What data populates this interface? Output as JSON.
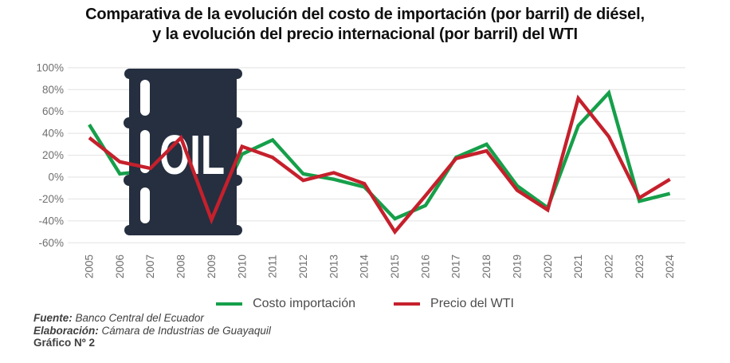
{
  "title": {
    "line1": "Comparativa de la evolución del costo de importación (por barril) de diésel,",
    "line2": "y la evolución del precio internacional (por barril) del WTI"
  },
  "chart_data": {
    "type": "line",
    "x": [
      2005,
      2006,
      2007,
      2008,
      2009,
      2010,
      2011,
      2012,
      2013,
      2014,
      2015,
      2016,
      2017,
      2018,
      2019,
      2020,
      2021,
      2022,
      2023,
      2024
    ],
    "series": [
      {
        "name": "Costo importación",
        "color": "#169f4a",
        "values": [
          48,
          3,
          6,
          25,
          -38,
          21,
          34,
          3,
          -2,
          -9,
          -38,
          -26,
          18,
          30,
          -8,
          -28,
          47,
          77,
          -22,
          -15
        ]
      },
      {
        "name": "Precio del WTI",
        "color": "#c5202c",
        "values": [
          36,
          14,
          8,
          36,
          -39,
          28,
          18,
          -3,
          4,
          -6,
          -50,
          -17,
          17,
          24,
          -12,
          -30,
          72,
          37,
          -19,
          -2
        ]
      }
    ],
    "ylim": [
      -60,
      100
    ],
    "yticks": [
      100,
      80,
      60,
      40,
      20,
      0,
      -20,
      -40,
      -60
    ],
    "ytick_labels": [
      "100%",
      "80%",
      "60%",
      "40%",
      "20%",
      "0%",
      "-20%",
      "-40%",
      "-60%"
    ],
    "unit": "percent",
    "grid": "horizontal",
    "legend_position": "bottom"
  },
  "barrel": {
    "label": "OIL"
  },
  "footer": {
    "source_label": "Fuente:",
    "source_text": " Banco Central del Ecuador",
    "elaboration_label": "Elaboración:",
    "elaboration_text": " Cámara de Industrias de Guayaquil",
    "figure_label": "Gráfico Nº 2"
  },
  "colors": {
    "green_line": "#169f4a",
    "red_line": "#c5202c",
    "barrel": "#252f40",
    "gridline": "#e2e2e2",
    "tick_text": "#6f6f6f",
    "title_text": "#101010",
    "legend_text": "#4b4b4b",
    "footer_text": "#3f3f3f"
  }
}
